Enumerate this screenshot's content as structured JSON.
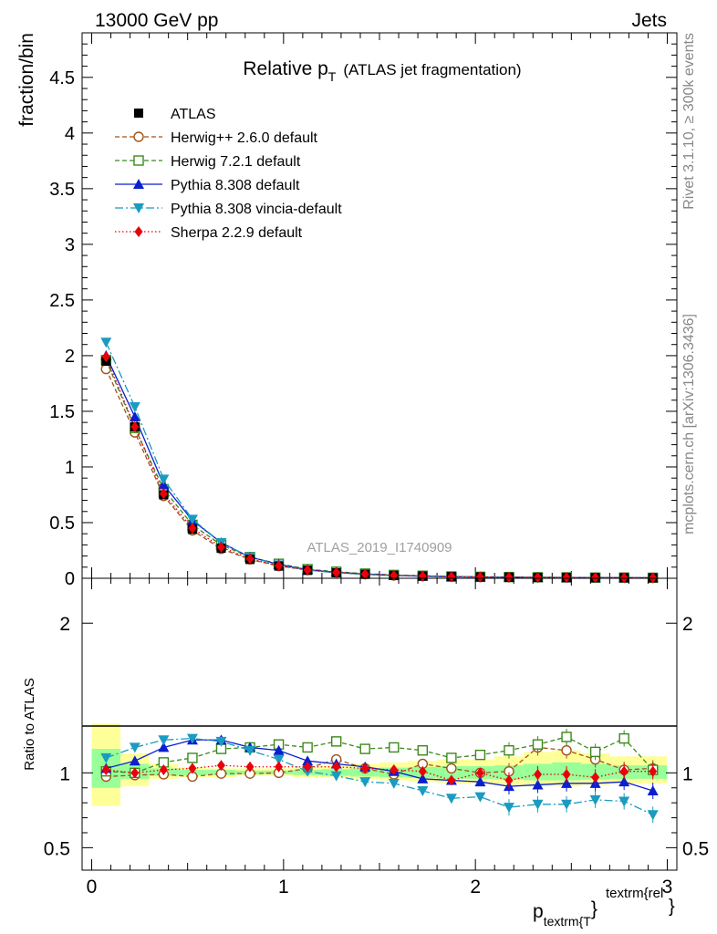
{
  "header": {
    "left": "13000 GeV pp",
    "right": "Jets"
  },
  "side_texts": {
    "rivet": "Rivet 3.1.10, ≥ 300k events",
    "mcplots": "mcplots.cern.ch [arXiv:1306.3436]"
  },
  "watermark": "ATLAS_2019_I1740909",
  "colors": {
    "atlas": "#000000",
    "herwigpp": "#a0521b",
    "herwig7": "#3b8a1a",
    "pythia": "#0a1fd0",
    "vincia": "#1a9bbf",
    "sherpa": "#e8000b",
    "band_yellow": "#ffff99",
    "band_green": "#99ff99"
  },
  "chart_data": [
    {
      "type": "scatter",
      "panel": "main",
      "title": "Relative p_T (ATLAS jet fragmentation)",
      "title_main": "Relative p",
      "title_sub": "T",
      "title_rest": "(ATLAS jet fragmentation)",
      "ylabel": "fraction/bin",
      "ylim": [
        0,
        4.9
      ],
      "xlim": [
        -0.05,
        3.05
      ],
      "yticks": [
        0,
        0.5,
        1,
        1.5,
        2,
        2.5,
        3,
        3.5,
        4,
        4.5
      ],
      "ytick_labels": [
        "0",
        "0.5",
        "1",
        "1.5",
        "2",
        "2.5",
        "3",
        "3.5",
        "4",
        "4.5"
      ],
      "x": [
        0.075,
        0.225,
        0.375,
        0.525,
        0.675,
        0.825,
        0.975,
        1.125,
        1.275,
        1.425,
        1.575,
        1.725,
        1.875,
        2.025,
        2.175,
        2.325,
        2.475,
        2.625,
        2.775,
        2.925
      ],
      "legend": [
        "ATLAS",
        "Herwig++ 2.6.0 default",
        "Herwig 7.2.1 default",
        "Pythia 8.308 default",
        "Pythia 8.308 vincia-default",
        "Sherpa 2.2.9 default"
      ],
      "series": [
        {
          "name": "ATLAS",
          "values": [
            1.95,
            1.36,
            0.75,
            0.44,
            0.27,
            0.17,
            0.11,
            0.072,
            0.05,
            0.036,
            0.026,
            0.02,
            0.015,
            0.012,
            0.01,
            0.008,
            0.007,
            0.006,
            0.005,
            0.0045
          ]
        },
        {
          "name": "Herwig++ 2.6.0 default",
          "values": [
            1.88,
            1.31,
            0.74,
            0.43,
            0.265,
            0.17,
            0.11,
            0.074,
            0.055,
            0.037,
            0.025,
            0.02,
            0.015,
            0.012,
            0.01,
            0.009,
            0.008,
            0.006,
            0.005,
            0.0046
          ]
        },
        {
          "name": "Herwig 7.2.1 default",
          "values": [
            1.96,
            1.35,
            0.8,
            0.48,
            0.3,
            0.19,
            0.13,
            0.082,
            0.059,
            0.042,
            0.03,
            0.023,
            0.016,
            0.013,
            0.011,
            0.009,
            0.008,
            0.006,
            0.006,
            0.0046
          ]
        },
        {
          "name": "Pythia 8.308 default",
          "values": [
            2.0,
            1.45,
            0.84,
            0.52,
            0.32,
            0.19,
            0.125,
            0.077,
            0.053,
            0.037,
            0.026,
            0.019,
            0.014,
            0.011,
            0.009,
            0.007,
            0.0065,
            0.0055,
            0.0046,
            0.004
          ]
        },
        {
          "name": "Pythia 8.308 vincia-default",
          "values": [
            2.12,
            1.54,
            0.89,
            0.53,
            0.32,
            0.19,
            0.12,
            0.073,
            0.049,
            0.034,
            0.024,
            0.017,
            0.012,
            0.01,
            0.008,
            0.006,
            0.0055,
            0.0048,
            0.004,
            0.0033
          ]
        },
        {
          "name": "Sherpa 2.2.9 default",
          "values": [
            1.99,
            1.36,
            0.76,
            0.45,
            0.28,
            0.175,
            0.113,
            0.075,
            0.052,
            0.037,
            0.026,
            0.02,
            0.0143,
            0.0119,
            0.0096,
            0.0078,
            0.0068,
            0.0058,
            0.0051,
            0.0046
          ]
        }
      ]
    },
    {
      "type": "scatter",
      "panel": "ratio",
      "ylabel": "Ratio to ATLAS",
      "xlabel": "p_textrm{T}^textrm{rel}",
      "xlabel_main": "p",
      "xlabel_sub": "textrm{T",
      "xlabel_brace": "}",
      "xlabel_sup": "textrm{rel",
      "xlabel_sup_brace": "}",
      "xlim": [
        -0.05,
        3.05
      ],
      "ylim": [
        0.35,
        2.3
      ],
      "xticks": [
        0,
        1,
        2,
        3
      ],
      "xtick_labels": [
        "0",
        "1",
        "2",
        "3"
      ],
      "yticks": [
        0.5,
        1,
        2
      ],
      "ytick_labels": [
        "0.5",
        "1",
        "2"
      ],
      "x": [
        0.075,
        0.225,
        0.375,
        0.525,
        0.675,
        0.825,
        0.975,
        1.125,
        1.275,
        1.425,
        1.575,
        1.725,
        1.875,
        2.025,
        2.175,
        2.325,
        2.475,
        2.625,
        2.775,
        2.925
      ],
      "band_edges": [
        0,
        0.15,
        0.3,
        0.45,
        0.6,
        0.75,
        0.9,
        1.05,
        1.2,
        1.35,
        1.5,
        1.65,
        1.8,
        1.95,
        2.1,
        2.25,
        2.4,
        2.55,
        2.7,
        2.85,
        3.0
      ],
      "band_outer": [
        [
          0.78,
          1.33
        ],
        [
          0.91,
          1.13
        ],
        [
          0.96,
          1.06
        ],
        [
          0.97,
          1.04
        ],
        [
          0.97,
          1.03
        ],
        [
          0.98,
          1.03
        ],
        [
          0.98,
          1.03
        ],
        [
          0.97,
          1.04
        ],
        [
          0.97,
          1.05
        ],
        [
          0.96,
          1.06
        ],
        [
          0.95,
          1.07
        ],
        [
          0.94,
          1.08
        ],
        [
          0.93,
          1.09
        ],
        [
          0.93,
          1.09
        ],
        [
          0.92,
          1.11
        ],
        [
          0.91,
          1.14
        ],
        [
          0.91,
          1.15
        ],
        [
          0.92,
          1.13
        ],
        [
          0.93,
          1.11
        ],
        [
          0.93,
          1.11
        ]
      ],
      "band_inner": [
        [
          0.9,
          1.16
        ],
        [
          0.96,
          1.06
        ],
        [
          0.98,
          1.03
        ],
        [
          0.985,
          1.02
        ],
        [
          0.985,
          1.02
        ],
        [
          0.99,
          1.015
        ],
        [
          0.99,
          1.015
        ],
        [
          0.985,
          1.02
        ],
        [
          0.98,
          1.025
        ],
        [
          0.975,
          1.03
        ],
        [
          0.97,
          1.035
        ],
        [
          0.965,
          1.04
        ],
        [
          0.96,
          1.045
        ],
        [
          0.96,
          1.045
        ],
        [
          0.955,
          1.05
        ],
        [
          0.95,
          1.06
        ],
        [
          0.95,
          1.07
        ],
        [
          0.955,
          1.06
        ],
        [
          0.96,
          1.05
        ],
        [
          0.96,
          1.05
        ]
      ],
      "series": [
        {
          "name": "Herwig++ 2.6.0 default",
          "values": [
            0.975,
            0.985,
            0.99,
            0.975,
            0.995,
            0.995,
            1.0,
            1.03,
            1.09,
            1.03,
            0.99,
            1.06,
            1.03,
            1.0,
            1.01,
            1.17,
            1.15,
            1.09,
            1.02,
            1.03
          ]
        },
        {
          "name": "Herwig 7.2.1 default",
          "values": [
            1.01,
            1.0,
            1.07,
            1.1,
            1.16,
            1.17,
            1.19,
            1.17,
            1.21,
            1.16,
            1.17,
            1.15,
            1.1,
            1.12,
            1.15,
            1.19,
            1.24,
            1.14,
            1.23,
            1.02
          ]
        },
        {
          "name": "Pythia 8.308 default",
          "values": [
            1.03,
            1.08,
            1.17,
            1.22,
            1.22,
            1.17,
            1.15,
            1.08,
            1.06,
            1.04,
            1.01,
            0.96,
            0.95,
            0.94,
            0.91,
            0.92,
            0.93,
            0.93,
            0.94,
            0.88
          ]
        },
        {
          "name": "Pythia 8.308 vincia-default",
          "values": [
            1.1,
            1.17,
            1.22,
            1.23,
            1.21,
            1.15,
            1.09,
            1.01,
            0.98,
            0.94,
            0.93,
            0.88,
            0.83,
            0.84,
            0.77,
            0.79,
            0.79,
            0.82,
            0.81,
            0.72
          ]
        },
        {
          "name": "Sherpa 2.2.9 default",
          "values": [
            1.02,
            1.0,
            1.02,
            1.03,
            1.05,
            1.04,
            1.04,
            1.04,
            1.04,
            1.03,
            1.02,
            1.01,
            0.95,
            1.0,
            0.95,
            0.99,
            0.99,
            0.97,
            1.01,
            1.01
          ]
        }
      ]
    }
  ]
}
